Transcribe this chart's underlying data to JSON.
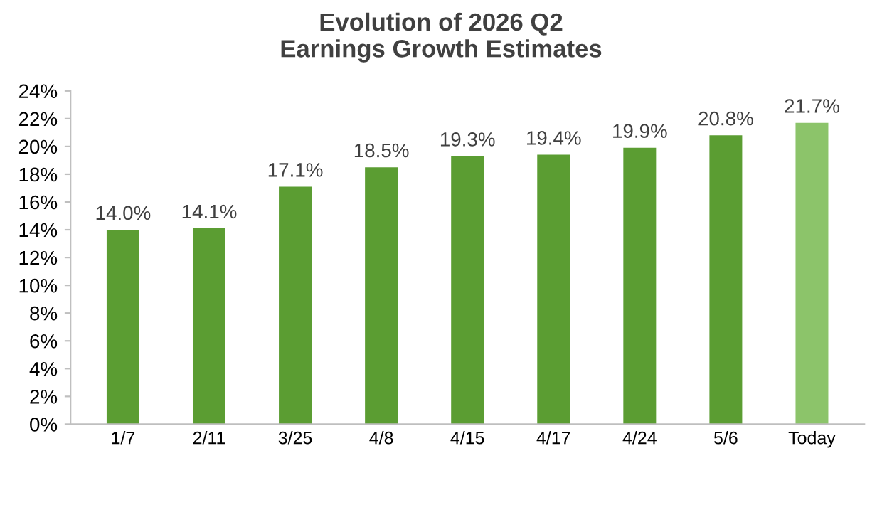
{
  "chart_data": {
    "type": "bar",
    "title": "Evolution of 2026 Q2\nEarnings Growth Estimates",
    "categories": [
      "1/7",
      "2/11",
      "3/25",
      "4/8",
      "4/15",
      "4/17",
      "4/24",
      "5/6",
      "Today"
    ],
    "values": [
      14.0,
      14.1,
      17.1,
      18.5,
      19.3,
      19.4,
      19.9,
      20.8,
      21.7
    ],
    "value_labels": [
      "14.0%",
      "14.1%",
      "17.1%",
      "18.5%",
      "19.3%",
      "19.4%",
      "19.9%",
      "20.8%",
      "21.7%"
    ],
    "colors": [
      "#5b9d32",
      "#5b9d32",
      "#5b9d32",
      "#5b9d32",
      "#5b9d32",
      "#5b9d32",
      "#5b9d32",
      "#5b9d32",
      "#8cc46a"
    ],
    "ylim": [
      0,
      24
    ],
    "yticks": [
      {
        "value": 0,
        "label": "0%"
      },
      {
        "value": 2,
        "label": "2%"
      },
      {
        "value": 4,
        "label": "4%"
      },
      {
        "value": 6,
        "label": "6%"
      },
      {
        "value": 8,
        "label": "8%"
      },
      {
        "value": 10,
        "label": "10%"
      },
      {
        "value": 12,
        "label": "12%"
      },
      {
        "value": 14,
        "label": "14%"
      },
      {
        "value": 16,
        "label": "16%"
      },
      {
        "value": 18,
        "label": "18%"
      },
      {
        "value": 20,
        "label": "20%"
      },
      {
        "value": 22,
        "label": "22%"
      },
      {
        "value": 24,
        "label": "24%"
      }
    ],
    "grid": false
  }
}
